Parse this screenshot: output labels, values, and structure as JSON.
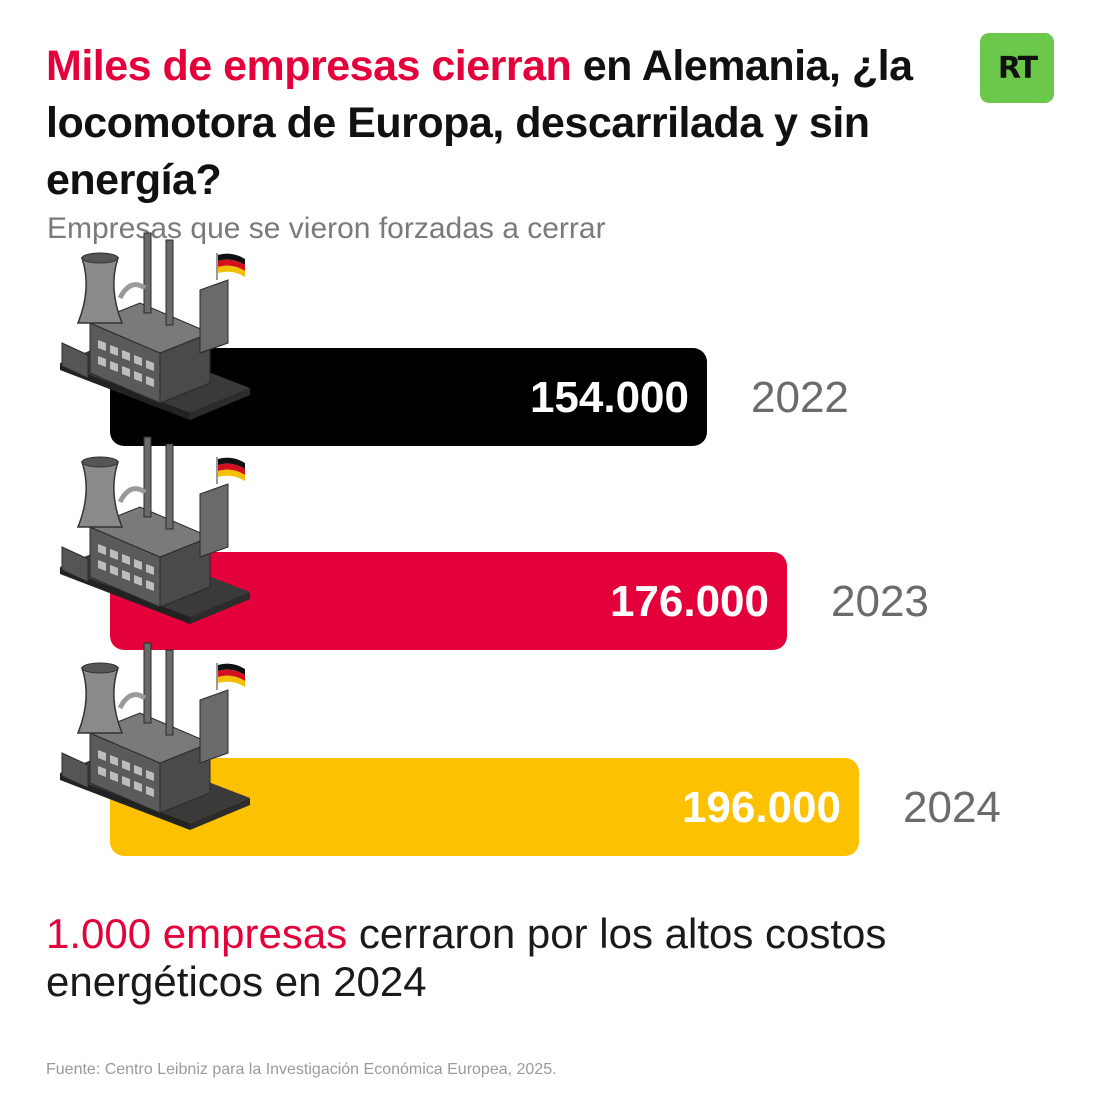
{
  "header": {
    "title_highlight": "Miles de empresas cierran",
    "title_rest": " en Alemania, ¿la locomotora de Europa, descarrilada y sin energía?",
    "subtitle": "Empresas que se vieron forzadas a cerrar",
    "logo_text": "RT",
    "logo_color": "#6cc84a"
  },
  "chart_data": {
    "type": "bar",
    "orientation": "horizontal",
    "categories": [
      "2022",
      "2023",
      "2024"
    ],
    "values": [
      154000,
      176000,
      196000
    ],
    "value_labels": [
      "154.000",
      "176.000",
      "196.000"
    ],
    "colors": [
      "#000000",
      "#e4003a",
      "#fcc100"
    ],
    "icon": "factory-with-german-flag-icon"
  },
  "footer": {
    "highlight": "1.000 empresas",
    "rest": " cerraron por los altos costos energéticos en 2024",
    "source": "Fuente: Centro Leibniz para la Investigación Económica Europea, 2025."
  }
}
